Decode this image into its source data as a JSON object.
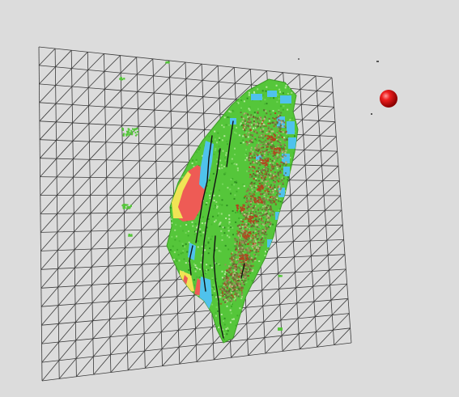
{
  "scene": {
    "background_color": "#dcdcdc",
    "grid": {
      "divisions": 18,
      "line_color": "#3a3a3a",
      "diagonals": true
    },
    "terrain": {
      "base_color": "#55c63a",
      "highland_color": "#7a6a3a",
      "peak_color": "#b2451f",
      "water_color": "#4fc2ec",
      "urban_color": "#ee5b55",
      "farmland_color": "#f0e455",
      "fault_line_color": "#111111"
    },
    "marker": {
      "label": "",
      "color": "#e41414"
    }
  }
}
